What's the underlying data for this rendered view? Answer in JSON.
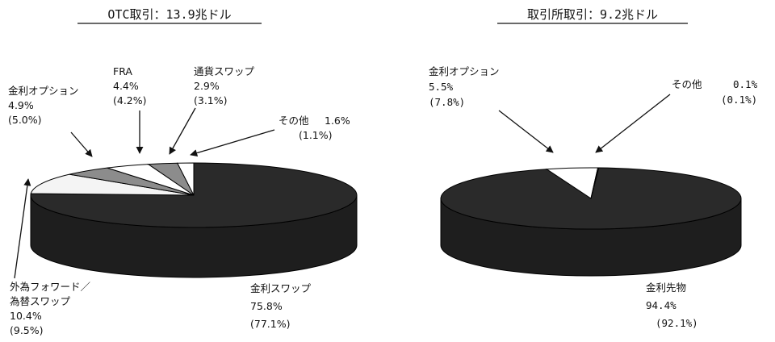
{
  "chart_data": [
    {
      "type": "pie",
      "title": "OTC取引：13.9兆ドル",
      "slices": [
        {
          "label_lines": [
            "金利スワップ"
          ],
          "value": "75.8%",
          "paren": "(77.1%)"
        },
        {
          "label_lines": [
            "外為フォワード／",
            "為替スワップ"
          ],
          "value": "10.4%",
          "paren": "(9.5%)"
        },
        {
          "label_lines": [
            "金利オプション"
          ],
          "value": "4.9%",
          "paren": "(5.0%)"
        },
        {
          "label_lines": [
            "FRA"
          ],
          "value": "4.4%",
          "paren": "(4.2%)"
        },
        {
          "label_lines": [
            "通貨スワップ"
          ],
          "value": "2.9%",
          "paren": "(3.1%)"
        },
        {
          "label_lines": [
            "その他"
          ],
          "value": "1.6%",
          "paren": "(1.1%)"
        }
      ],
      "values": [
        75.8,
        10.4,
        4.9,
        4.4,
        2.9,
        1.6
      ],
      "colors": [
        "#2a2a2a",
        "#f4f4f4",
        "#8c8c8c",
        "#ffffff",
        "#8c8c8c",
        "#ffffff"
      ]
    },
    {
      "type": "pie",
      "title": "取引所取引：9.2兆ドル",
      "slices": [
        {
          "label_lines": [
            "金利先物"
          ],
          "value": "94.4%",
          "paren": "(92.1%)"
        },
        {
          "label_lines": [
            "金利オプション"
          ],
          "value": "5.5%",
          "paren": "(7.8%)"
        },
        {
          "label_lines": [
            "その他"
          ],
          "value": "0.1%",
          "paren": "(0.1%)"
        }
      ],
      "values": [
        94.4,
        5.5,
        0.1
      ],
      "colors": [
        "#2a2a2a",
        "#ffffff",
        "#8c8c8c"
      ]
    }
  ]
}
